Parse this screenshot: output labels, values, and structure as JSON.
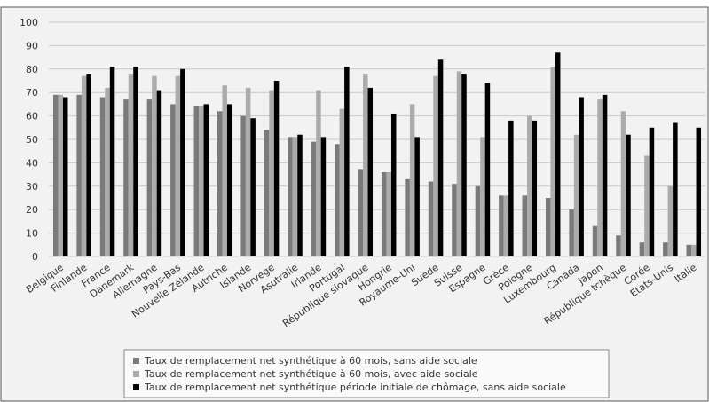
{
  "chart_data": {
    "type": "bar",
    "categories": [
      "Belgique",
      "Finlande",
      "France",
      "Danemark",
      "Allemagne",
      "Pays-Bas",
      "Nouvelle Zélande",
      "Autriche",
      "Islande",
      "Norvège",
      "Asutralie",
      "Irlande",
      "Portugal",
      "République slovaque",
      "Hongrie",
      "Royaume-Uni",
      "Suède",
      "Suisse",
      "Espagne",
      "Grèce",
      "Pologne",
      "Luxembourg",
      "Canada",
      "Japon",
      "République tchèque",
      "Corée",
      "Etats-Unis",
      "Italie"
    ],
    "series": [
      {
        "name": "Taux de remplacement net synthétique à 60 mois, sans aide sociale",
        "color": "#7a7a7a",
        "values": [
          69,
          69,
          68,
          67,
          67,
          65,
          64,
          62,
          60,
          54,
          51,
          49,
          48,
          37,
          36,
          33,
          32,
          31,
          30,
          26,
          26,
          25,
          20,
          13,
          9,
          6,
          6,
          5
        ]
      },
      {
        "name": "Taux de remplacement net synthétique à 60 mois, avec aide sociale",
        "color": "#ababab",
        "values": [
          69,
          77,
          72,
          78,
          77,
          77,
          64,
          73,
          72,
          71,
          51,
          71,
          63,
          78,
          36,
          65,
          77,
          79,
          51,
          26,
          60,
          81,
          52,
          67,
          62,
          43,
          30,
          5
        ]
      },
      {
        "name": "Taux de remplacement net synthétique période initiale de chômage, sans aide sociale",
        "color": "#000000",
        "values": [
          68,
          78,
          81,
          81,
          71,
          80,
          65,
          65,
          59,
          75,
          52,
          51,
          81,
          72,
          61,
          51,
          84,
          78,
          74,
          58,
          58,
          87,
          68,
          69,
          52,
          55,
          57,
          55
        ]
      }
    ],
    "ylim": [
      0,
      100
    ],
    "yticks": [
      0,
      10,
      20,
      30,
      40,
      50,
      60,
      70,
      80,
      90,
      100
    ],
    "grid": true
  }
}
